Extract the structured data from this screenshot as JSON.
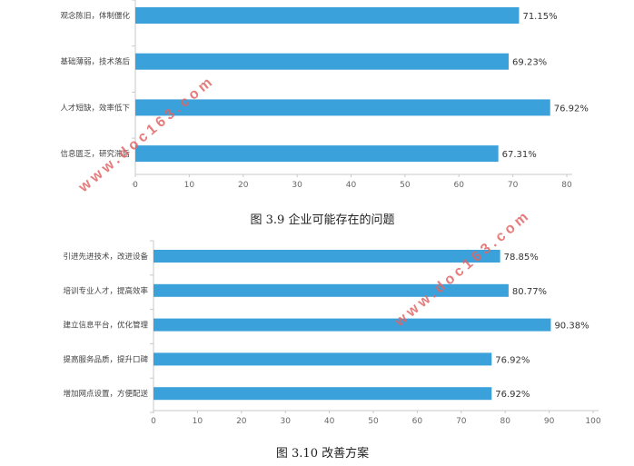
{
  "watermark": "www.doc163.com",
  "colors": {
    "bar": "#3ba1db",
    "axis": "#c8c8c8",
    "text": "#333333"
  },
  "chart_data": [
    {
      "type": "bar",
      "orientation": "horizontal",
      "categories": [
        "观念陈旧，体制僵化",
        "基础薄弱，技术落后",
        "人才短缺，效率低下",
        "信息匮乏，研究滞后"
      ],
      "values": [
        71.15,
        69.23,
        76.92,
        67.31
      ],
      "value_labels": [
        "71.15%",
        "69.23%",
        "76.92%",
        "67.31%"
      ],
      "xlim": [
        0,
        80
      ],
      "xticks": [
        0,
        10,
        20,
        30,
        40,
        50,
        60,
        70,
        80
      ],
      "caption": "图 3.9  企业可能存在的问题",
      "grid": false
    },
    {
      "type": "bar",
      "orientation": "horizontal",
      "categories": [
        "引进先进技术，改进设备",
        "培训专业人才，提高效率",
        "建立信息平台，优化管理",
        "提高服务品质，提升口碑",
        "增加网点设置，方便配送"
      ],
      "values": [
        78.85,
        80.77,
        90.38,
        76.92,
        76.92
      ],
      "value_labels": [
        "78.85%",
        "80.77%",
        "90.38%",
        "76.92%",
        "76.92%"
      ],
      "xlim": [
        0,
        100
      ],
      "xticks": [
        0,
        10,
        20,
        30,
        40,
        50,
        60,
        70,
        80,
        90,
        100
      ],
      "caption": "图 3.10  改善方案",
      "grid": false
    }
  ]
}
